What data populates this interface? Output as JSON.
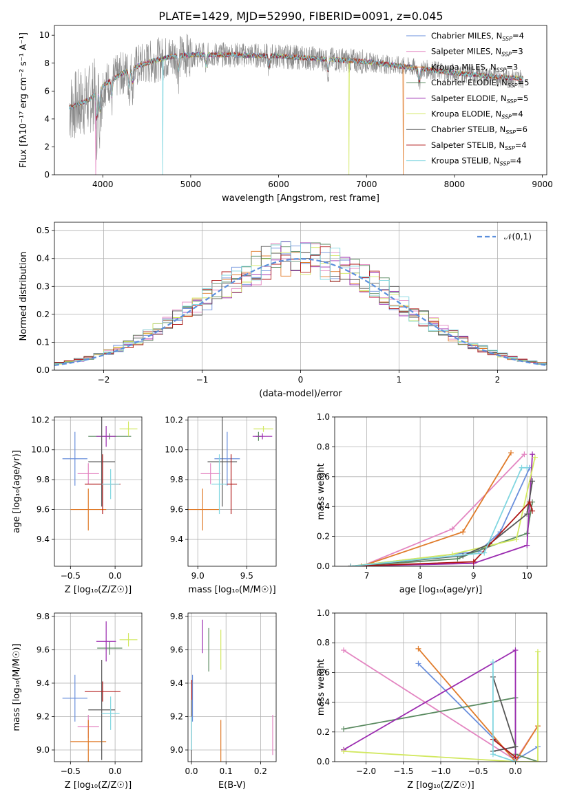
{
  "figure": {
    "title": "PLATE=1429, MJD=52990, FIBERID=0091, z=0.045",
    "colors": [
      "#6a8fdc",
      "#e385c1",
      "#e07b2a",
      "#5a8a60",
      "#9b2bb0",
      "#d2e860",
      "#555555",
      "#b01818",
      "#80d6e0"
    ],
    "gray": "#888888"
  },
  "chart_data": [
    {
      "id": "spectrum",
      "type": "line",
      "xlabel": "wavelength [Angstrom, rest frame]",
      "ylabel": "Flux [fλ10⁻¹⁷ erg cm⁻² s⁻¹ A⁻¹]",
      "xlim": [
        3450,
        9050
      ],
      "ylim": [
        0,
        10.7
      ],
      "xticks": [
        4000,
        5000,
        6000,
        7000,
        8000,
        9000
      ],
      "yticks": [
        0,
        2,
        4,
        6,
        8,
        10
      ],
      "grid": false,
      "legend_position": "upper right",
      "data_range": [
        3620,
        8780
      ],
      "legend": [
        {
          "name": "Chabrier MILES",
          "n": "4"
        },
        {
          "name": "Salpeter MILES",
          "n": "3"
        },
        {
          "name": "Kroupa MILES",
          "n": "3"
        },
        {
          "name": "Chabrier ELODIE",
          "n": "5"
        },
        {
          "name": "Salpeter ELODIE",
          "n": "5"
        },
        {
          "name": "Kroupa ELODIE",
          "n": "4"
        },
        {
          "name": "Chabrier STELIB",
          "n": "6"
        },
        {
          "name": "Salpeter STELIB",
          "n": "4"
        },
        {
          "name": "Kroupa STELIB",
          "n": "4"
        }
      ],
      "continuum": [
        [
          3620,
          4.8
        ],
        [
          3700,
          5.0
        ],
        [
          3850,
          5.4
        ],
        [
          3950,
          6.1
        ],
        [
          4050,
          6.6
        ],
        [
          4200,
          7.2
        ],
        [
          4400,
          7.8
        ],
        [
          4600,
          8.2
        ],
        [
          4800,
          8.5
        ],
        [
          5000,
          8.6
        ],
        [
          5500,
          8.6
        ],
        [
          6000,
          8.5
        ],
        [
          6500,
          8.3
        ],
        [
          7000,
          8.1
        ],
        [
          7500,
          7.7
        ],
        [
          8000,
          7.3
        ],
        [
          8500,
          7.0
        ],
        [
          8780,
          6.9
        ]
      ]
    },
    {
      "id": "residuals",
      "type": "histogram",
      "xlabel": "(data-model)/error",
      "ylabel": "Normed distribution",
      "xlim": [
        -2.5,
        2.5
      ],
      "ylim": [
        0,
        0.53
      ],
      "xticks": [
        -2,
        -1,
        0,
        1,
        2
      ],
      "yticks": [
        0.0,
        0.1,
        0.2,
        0.3,
        0.4,
        0.5
      ],
      "grid": true,
      "bin_width": 0.1,
      "reference": {
        "label": "𝒩(0,1)"
      }
    },
    {
      "id": "age_vs_Z",
      "type": "scatter",
      "xlabel": "Z [log₁₀(Z/Z☉)]",
      "ylabel": "age  [log₁₀(age/yr)]",
      "xlim": [
        -0.68,
        0.3
      ],
      "ylim": [
        9.22,
        10.22
      ],
      "xticks": [
        -0.5,
        0.0
      ],
      "yticks": [
        9.4,
        9.6,
        9.8,
        10.0,
        10.2
      ],
      "grid": true,
      "points": [
        {
          "c": 0,
          "x": -0.45,
          "y": 9.94,
          "xerr": 0.14,
          "yerr": 0.18
        },
        {
          "c": 1,
          "x": -0.3,
          "y": 9.84,
          "xerr": 0.12,
          "yerr": 0.07
        },
        {
          "c": 2,
          "x": -0.3,
          "y": 9.6,
          "xerr": 0.2,
          "yerr": 0.14
        },
        {
          "c": 3,
          "x": -0.06,
          "y": 10.09,
          "xerr": 0.24,
          "yerr": 0.02
        },
        {
          "c": 4,
          "x": -0.1,
          "y": 10.09,
          "xerr": 0.11,
          "yerr": 0.07
        },
        {
          "c": 5,
          "x": 0.15,
          "y": 10.14,
          "xerr": 0.1,
          "yerr": 0.05
        },
        {
          "c": 6,
          "x": -0.15,
          "y": 9.92,
          "xerr": 0.15,
          "yerr": 0.3
        },
        {
          "c": 7,
          "x": -0.14,
          "y": 9.77,
          "xerr": 0.2,
          "yerr": 0.2
        },
        {
          "c": 8,
          "x": -0.05,
          "y": 9.77,
          "xerr": 0.1,
          "yerr": 0.1
        }
      ]
    },
    {
      "id": "age_vs_mass",
      "type": "scatter",
      "xlabel": "mass [log₁₀(M/M☉)]",
      "ylabel": "",
      "xlim": [
        8.9,
        9.8
      ],
      "ylim": [
        9.22,
        10.22
      ],
      "xticks": [
        9.0,
        9.5
      ],
      "yticks": [
        9.4,
        9.6,
        9.8,
        10.0,
        10.2
      ],
      "grid": true,
      "points": [
        {
          "c": 0,
          "x": 9.3,
          "y": 9.94,
          "xerr": 0.13,
          "yerr": 0.18
        },
        {
          "c": 1,
          "x": 9.13,
          "y": 9.84,
          "xerr": 0.1,
          "yerr": 0.07
        },
        {
          "c": 2,
          "x": 9.05,
          "y": 9.6,
          "xerr": 0.17,
          "yerr": 0.14
        },
        {
          "c": 3,
          "x": 9.62,
          "y": 10.09,
          "xerr": 0.03,
          "yerr": 0.03
        },
        {
          "c": 4,
          "x": 9.66,
          "y": 10.09,
          "xerr": 0.1,
          "yerr": 0.02
        },
        {
          "c": 5,
          "x": 9.67,
          "y": 10.14,
          "xerr": 0.1,
          "yerr": 0.02
        },
        {
          "c": 6,
          "x": 9.25,
          "y": 9.92,
          "xerr": 0.15,
          "yerr": 0.3
        },
        {
          "c": 7,
          "x": 9.34,
          "y": 9.77,
          "xerr": 0.06,
          "yerr": 0.2
        },
        {
          "c": 8,
          "x": 9.22,
          "y": 9.77,
          "xerr": 0.08,
          "yerr": 0.2
        }
      ]
    },
    {
      "id": "massweight_vs_age",
      "type": "line",
      "xlabel": "age  [log₁₀(age/yr)]",
      "ylabel": "mass weight",
      "xlim": [
        6.4,
        10.37
      ],
      "ylim": [
        0,
        1.0
      ],
      "xticks": [
        7,
        8,
        9,
        10
      ],
      "yticks": [
        0.0,
        0.2,
        0.4,
        0.6,
        0.8,
        1.0
      ],
      "grid": true,
      "series": [
        {
          "c": 0,
          "points": [
            [
              6.7,
              0.0
            ],
            [
              9.1,
              0.1
            ],
            [
              9.5,
              0.23
            ],
            [
              10.05,
              0.66
            ]
          ]
        },
        {
          "c": 1,
          "points": [
            [
              6.9,
              0.0
            ],
            [
              8.6,
              0.25
            ],
            [
              9.95,
              0.75
            ]
          ]
        },
        {
          "c": 2,
          "points": [
            [
              6.9,
              0.0
            ],
            [
              8.8,
              0.23
            ],
            [
              9.7,
              0.76
            ]
          ]
        },
        {
          "c": 3,
          "points": [
            [
              6.7,
              0.0
            ],
            [
              8.7,
              0.05
            ],
            [
              9.2,
              0.12
            ],
            [
              10.0,
              0.22
            ],
            [
              10.1,
              0.43
            ]
          ]
        },
        {
          "c": 4,
          "points": [
            [
              6.7,
              0.0
            ],
            [
              9.0,
              0.02
            ],
            [
              10.0,
              0.14
            ],
            [
              10.1,
              0.75
            ]
          ]
        },
        {
          "c": 5,
          "points": [
            [
              6.7,
              0.0
            ],
            [
              8.6,
              0.08
            ],
            [
              9.8,
              0.18
            ],
            [
              10.15,
              0.73
            ]
          ]
        },
        {
          "c": 6,
          "points": [
            [
              6.7,
              0.0
            ],
            [
              8.8,
              0.07
            ],
            [
              9.3,
              0.15
            ],
            [
              10.0,
              0.35
            ],
            [
              10.1,
              0.57
            ]
          ]
        },
        {
          "c": 7,
          "points": [
            [
              6.7,
              0.0
            ],
            [
              9.0,
              0.03
            ],
            [
              10.05,
              0.43
            ],
            [
              10.1,
              0.37
            ]
          ]
        },
        {
          "c": 8,
          "points": [
            [
              6.7,
              0.0
            ],
            [
              9.2,
              0.09
            ],
            [
              9.9,
              0.66
            ],
            [
              10.0,
              0.66
            ]
          ]
        }
      ]
    },
    {
      "id": "mass_vs_Z",
      "type": "scatter",
      "xlabel": "Z [log₁₀(Z/Z☉)]",
      "ylabel": "mass [log₁₀(M/M☉)]",
      "xlim": [
        -0.68,
        0.3
      ],
      "ylim": [
        8.93,
        9.82
      ],
      "xticks": [
        -0.5,
        0.0
      ],
      "yticks": [
        9.0,
        9.2,
        9.4,
        9.6,
        9.8
      ],
      "grid": true,
      "points": [
        {
          "c": 0,
          "x": -0.45,
          "y": 9.31,
          "xerr": 0.14,
          "yerr": 0.14
        },
        {
          "c": 1,
          "x": -0.3,
          "y": 9.14,
          "xerr": 0.12,
          "yerr": 0.07
        },
        {
          "c": 2,
          "x": -0.3,
          "y": 9.05,
          "xerr": 0.2,
          "yerr": 0.13
        },
        {
          "c": 3,
          "x": -0.06,
          "y": 9.61,
          "xerr": 0.14,
          "yerr": 0.04
        },
        {
          "c": 4,
          "x": -0.1,
          "y": 9.65,
          "xerr": 0.11,
          "yerr": 0.12
        },
        {
          "c": 5,
          "x": 0.15,
          "y": 9.66,
          "xerr": 0.1,
          "yerr": 0.04
        },
        {
          "c": 6,
          "x": -0.15,
          "y": 9.24,
          "xerr": 0.15,
          "yerr": 0.3
        },
        {
          "c": 7,
          "x": -0.14,
          "y": 9.35,
          "xerr": 0.2,
          "yerr": 0.06
        },
        {
          "c": 8,
          "x": -0.05,
          "y": 9.22,
          "xerr": 0.1,
          "yerr": 0.1
        }
      ]
    },
    {
      "id": "mass_vs_EBV",
      "type": "scatter",
      "xlabel": "E(B-V)",
      "ylabel": "",
      "xlim": [
        -0.01,
        0.245
      ],
      "ylim": [
        8.93,
        9.82
      ],
      "xticks": [
        0.0,
        0.1,
        0.2
      ],
      "yticks": [
        9.0,
        9.2,
        9.4,
        9.6,
        9.8
      ],
      "grid": true,
      "points": [
        {
          "c": 0,
          "x": 0.003,
          "y": 9.31,
          "yerr": 0.14
        },
        {
          "c": 1,
          "x": 0.235,
          "y": 9.09,
          "yerr": 0.12
        },
        {
          "c": 2,
          "x": 0.085,
          "y": 9.05,
          "yerr": 0.13
        },
        {
          "c": 3,
          "x": 0.05,
          "y": 9.6,
          "yerr": 0.13
        },
        {
          "c": 4,
          "x": 0.032,
          "y": 9.68,
          "yerr": 0.1
        },
        {
          "c": 5,
          "x": 0.085,
          "y": 9.6,
          "yerr": 0.12
        },
        {
          "c": 6,
          "x": 0.0,
          "y": 9.1,
          "yerr": 0.2
        },
        {
          "c": 7,
          "x": 0.001,
          "y": 9.36,
          "yerr": 0.06
        },
        {
          "c": 8,
          "x": 0.0,
          "y": 9.1,
          "yerr": 0.1
        }
      ]
    },
    {
      "id": "massweight_vs_Z",
      "type": "line",
      "xlabel": "Z [log₁₀(Z/Z☉)]",
      "ylabel": "mass weight",
      "xlim": [
        -2.42,
        0.42
      ],
      "ylim": [
        0,
        1.0
      ],
      "xticks": [
        -2.0,
        -1.5,
        -1.0,
        -0.5,
        0.0
      ],
      "yticks": [
        0.0,
        0.2,
        0.4,
        0.6,
        0.8,
        1.0
      ],
      "grid": true,
      "series": [
        {
          "c": 0,
          "points": [
            [
              -1.3,
              0.66
            ],
            [
              0.0,
              0.01
            ],
            [
              0.3,
              0.1
            ]
          ]
        },
        {
          "c": 1,
          "points": [
            [
              -2.3,
              0.75
            ],
            [
              0.0,
              0.01
            ],
            [
              0.3,
              0.24
            ]
          ]
        },
        {
          "c": 2,
          "points": [
            [
              -1.3,
              0.76
            ],
            [
              0.0,
              0.0
            ],
            [
              0.3,
              0.24
            ]
          ]
        },
        {
          "c": 3,
          "points": [
            [
              -2.3,
              0.22
            ],
            [
              0.0,
              0.43
            ],
            [
              0.0,
              0.05
            ],
            [
              0.3,
              0.0
            ]
          ]
        },
        {
          "c": 4,
          "points": [
            [
              -2.3,
              0.08
            ],
            [
              0.0,
              0.75
            ],
            [
              0.0,
              0.03
            ]
          ]
        },
        {
          "c": 5,
          "points": [
            [
              -2.3,
              0.07
            ],
            [
              0.0,
              0.0
            ],
            [
              0.3,
              0.0
            ],
            [
              0.3,
              0.74
            ]
          ]
        },
        {
          "c": 6,
          "points": [
            [
              -0.3,
              0.57
            ],
            [
              0.0,
              0.1
            ],
            [
              -0.3,
              0.07
            ]
          ]
        },
        {
          "c": 7,
          "points": [
            [
              -0.3,
              0.15
            ],
            [
              0.0,
              0.03
            ]
          ]
        },
        {
          "c": 8,
          "points": [
            [
              -0.3,
              0.67
            ],
            [
              -0.3,
              0.05
            ],
            [
              0.0,
              0.0
            ]
          ]
        }
      ]
    }
  ]
}
